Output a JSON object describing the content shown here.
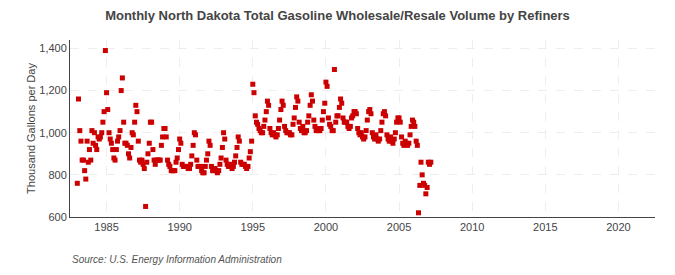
{
  "chart_data": {
    "type": "scatter",
    "title": "Monthly North Dakota Total Gasoline Wholesale/Resale Volume by Refiners",
    "ylabel": "Thousand Gallons per Day",
    "annotations": [
      "Source: U.S. Energy Information Administration"
    ],
    "color": "#CC0000",
    "marker": "square",
    "grid": true,
    "xlim": [
      1982.5,
      2022.5
    ],
    "ylim": [
      600,
      1440
    ],
    "xticks": [
      1985,
      1990,
      1995,
      2000,
      2005,
      2010,
      2015,
      2020
    ],
    "yticks": [
      600,
      800,
      {
        "value": 1000,
        "label": "1,000"
      },
      {
        "value": 1200,
        "label": "1,200"
      },
      {
        "value": 1400,
        "label": "1,400"
      }
    ],
    "x": [
      1983.0,
      1983.08,
      1983.17,
      1983.25,
      1983.33,
      1983.42,
      1983.5,
      1983.58,
      1983.67,
      1983.75,
      1983.83,
      1983.92,
      1984.0,
      1984.08,
      1984.17,
      1984.25,
      1984.33,
      1984.42,
      1984.5,
      1984.58,
      1984.67,
      1984.75,
      1984.83,
      1984.92,
      1985.0,
      1985.08,
      1985.17,
      1985.25,
      1985.33,
      1985.42,
      1985.5,
      1985.58,
      1985.67,
      1985.75,
      1985.83,
      1985.92,
      1986.0,
      1986.08,
      1986.17,
      1986.25,
      1986.33,
      1986.42,
      1986.5,
      1986.58,
      1986.67,
      1986.75,
      1986.83,
      1986.92,
      1987.0,
      1987.08,
      1987.17,
      1987.25,
      1987.33,
      1987.42,
      1987.5,
      1987.58,
      1987.67,
      1987.75,
      1987.83,
      1987.92,
      1988.0,
      1988.08,
      1988.17,
      1988.25,
      1988.33,
      1988.42,
      1988.5,
      1988.58,
      1988.67,
      1988.75,
      1988.83,
      1988.92,
      1989.0,
      1989.08,
      1989.17,
      1989.25,
      1989.33,
      1989.42,
      1989.5,
      1989.58,
      1989.67,
      1989.75,
      1989.83,
      1989.92,
      1990.0,
      1990.08,
      1990.17,
      1990.25,
      1990.33,
      1990.42,
      1990.5,
      1990.58,
      1990.67,
      1990.75,
      1990.83,
      1990.92,
      1991.0,
      1991.08,
      1991.17,
      1991.25,
      1991.33,
      1991.42,
      1991.5,
      1991.58,
      1991.67,
      1991.75,
      1991.83,
      1991.92,
      1992.0,
      1992.08,
      1992.17,
      1992.25,
      1992.33,
      1992.42,
      1992.5,
      1992.58,
      1992.67,
      1992.75,
      1992.83,
      1992.92,
      1993.0,
      1993.08,
      1993.17,
      1993.25,
      1993.33,
      1993.42,
      1993.5,
      1993.58,
      1993.67,
      1993.75,
      1993.83,
      1993.92,
      1994.0,
      1994.08,
      1994.17,
      1994.25,
      1994.33,
      1994.42,
      1994.5,
      1994.58,
      1994.67,
      1994.75,
      1994.83,
      1994.92,
      1995.0,
      1995.08,
      1995.17,
      1995.25,
      1995.33,
      1995.42,
      1995.5,
      1995.58,
      1995.67,
      1995.75,
      1995.83,
      1995.92,
      1996.0,
      1996.08,
      1996.17,
      1996.25,
      1996.33,
      1996.42,
      1996.5,
      1996.58,
      1996.67,
      1996.75,
      1996.83,
      1996.92,
      1997.0,
      1997.08,
      1997.17,
      1997.25,
      1997.33,
      1997.42,
      1997.5,
      1997.58,
      1997.67,
      1997.75,
      1997.83,
      1997.92,
      1998.0,
      1998.08,
      1998.17,
      1998.25,
      1998.33,
      1998.42,
      1998.5,
      1998.58,
      1998.67,
      1998.75,
      1998.83,
      1998.92,
      1999.0,
      1999.08,
      1999.17,
      1999.25,
      1999.33,
      1999.42,
      1999.5,
      1999.58,
      1999.67,
      1999.75,
      1999.83,
      1999.92,
      2000.0,
      2000.08,
      2000.17,
      2000.25,
      2000.33,
      2000.42,
      2000.5,
      2000.58,
      2000.67,
      2000.75,
      2000.83,
      2000.92,
      2001.0,
      2001.08,
      2001.17,
      2001.25,
      2001.33,
      2001.42,
      2001.5,
      2001.58,
      2001.67,
      2001.75,
      2001.83,
      2001.92,
      2002.0,
      2002.08,
      2002.17,
      2002.25,
      2002.33,
      2002.42,
      2002.5,
      2002.58,
      2002.67,
      2002.75,
      2002.83,
      2002.92,
      2003.0,
      2003.08,
      2003.17,
      2003.25,
      2003.33,
      2003.42,
      2003.5,
      2003.58,
      2003.67,
      2003.75,
      2003.83,
      2003.92,
      2004.0,
      2004.08,
      2004.17,
      2004.25,
      2004.33,
      2004.42,
      2004.5,
      2004.58,
      2004.67,
      2004.75,
      2004.83,
      2004.92,
      2005.0,
      2005.08,
      2005.17,
      2005.25,
      2005.33,
      2005.42,
      2005.5,
      2005.58,
      2005.67,
      2005.75,
      2005.83,
      2005.92,
      2006.0,
      2006.08,
      2006.17,
      2006.25,
      2006.33,
      2006.42,
      2006.5,
      2006.58,
      2006.67,
      2006.75,
      2006.83,
      2006.92,
      2007.0,
      2007.08,
      2007.17
    ],
    "values": [
      760,
      1160,
      1010,
      960,
      870,
      870,
      820,
      780,
      960,
      860,
      920,
      870,
      1010,
      950,
      1000,
      940,
      920,
      980,
      970,
      980,
      1000,
      1050,
      1100,
      1390,
      1190,
      1110,
      1000,
      970,
      950,
      920,
      880,
      870,
      920,
      960,
      980,
      1010,
      1200,
      1260,
      1050,
      950,
      950,
      940,
      900,
      880,
      930,
      1000,
      990,
      1050,
      1130,
      1100,
      960,
      870,
      860,
      870,
      850,
      830,
      650,
      860,
      900,
      950,
      1050,
      1050,
      920,
      870,
      850,
      870,
      870,
      870,
      870,
      940,
      980,
      1020,
      1020,
      980,
      870,
      850,
      840,
      820,
      820,
      820,
      820,
      860,
      880,
      920,
      970,
      950,
      850,
      840,
      840,
      840,
      840,
      830,
      830,
      850,
      890,
      940,
      1000,
      990,
      870,
      840,
      840,
      840,
      820,
      810,
      810,
      840,
      870,
      900,
      960,
      940,
      840,
      820,
      820,
      830,
      820,
      810,
      820,
      850,
      880,
      930,
      1000,
      970,
      870,
      850,
      840,
      850,
      840,
      830,
      840,
      860,
      890,
      930,
      980,
      960,
      860,
      850,
      850,
      850,
      840,
      830,
      840,
      880,
      910,
      960,
      1230,
      1190,
      1080,
      1050,
      1040,
      1020,
      1010,
      1000,
      1000,
      1030,
      1060,
      1100,
      1150,
      1130,
      1020,
      1000,
      990,
      1000,
      990,
      980,
      990,
      1020,
      1060,
      1110,
      1150,
      1130,
      1030,
      1010,
      1000,
      1000,
      1000,
      990,
      990,
      1040,
      1070,
      1120,
      1170,
      1150,
      1050,
      1020,
      1010,
      1030,
      1000,
      1000,
      1010,
      1050,
      1080,
      1130,
      1180,
      1150,
      1060,
      1030,
      1010,
      1020,
      1010,
      1010,
      1020,
      1060,
      1100,
      1140,
      1240,
      1220,
      1070,
      1040,
      1030,
      1010,
      1010,
      1300,
      1050,
      1080,
      1080,
      1120,
      1160,
      1140,
      1070,
      1050,
      1050,
      1050,
      1030,
      1020,
      1030,
      1070,
      1080,
      1100,
      1100,
      1090,
      1020,
      1000,
      990,
      1000,
      980,
      970,
      980,
      1010,
      1060,
      1100,
      1110,
      1090,
      1000,
      980,
      970,
      990,
      970,
      960,
      970,
      1010,
      1050,
      1090,
      1100,
      1080,
      990,
      970,
      960,
      980,
      960,
      950,
      970,
      1000,
      1050,
      1070,
      1070,
      1050,
      980,
      950,
      940,
      960,
      950,
      940,
      950,
      990,
      1030,
      1060,
      1050,
      1030,
      960,
      940,
      620,
      750,
      860,
      800,
      760,
      750,
      710,
      740,
      860,
      850,
      860
    ]
  }
}
